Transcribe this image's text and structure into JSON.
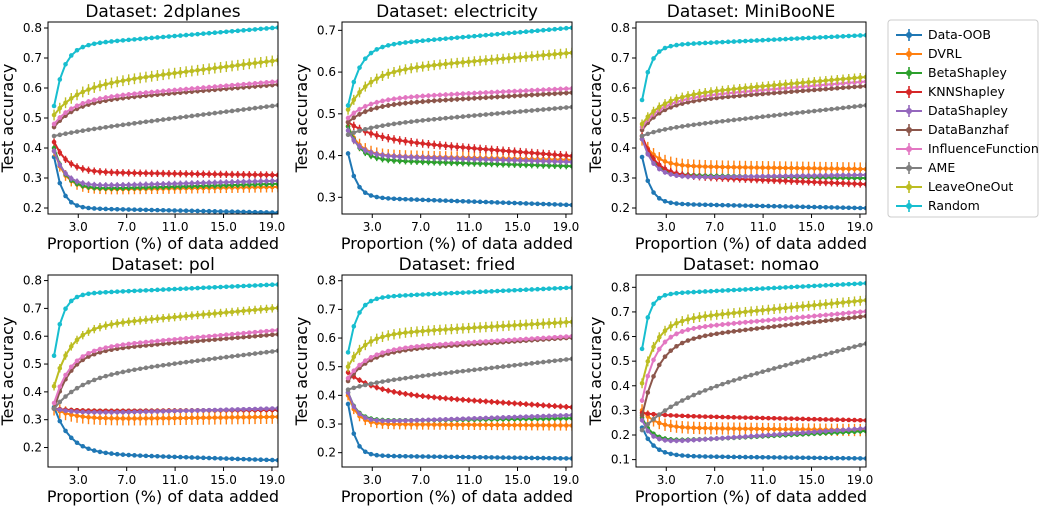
{
  "chart_data": {
    "type": "line",
    "grid": false,
    "legend_position": "right",
    "x_tick_labels": [
      "3.0",
      "7.0",
      "11.0",
      "15.0",
      "19.0"
    ],
    "xlabel": "Proportion (%) of data added",
    "ylabel": "Test accuracy",
    "series_styles": [
      {
        "name": "Data-OOB",
        "color": "#1f77b4"
      },
      {
        "name": "DVRL",
        "color": "#ff7f0e"
      },
      {
        "name": "BetaShapley",
        "color": "#2ca02c"
      },
      {
        "name": "KNNShapley",
        "color": "#d62728"
      },
      {
        "name": "DataShapley",
        "color": "#9467bd"
      },
      {
        "name": "DataBanzhaf",
        "color": "#8c564b"
      },
      {
        "name": "InfluenceFunction",
        "color": "#e377c2"
      },
      {
        "name": "AME",
        "color": "#7f7f7f"
      },
      {
        "name": "LeaveOneOut",
        "color": "#bcbd22"
      },
      {
        "name": "Random",
        "color": "#17becf"
      }
    ],
    "charts": [
      {
        "title": "Dataset: 2dplanes",
        "xlim": [
          0.5,
          19.5
        ],
        "ylim": [
          0.18,
          0.82
        ],
        "yticks": [
          0.2,
          0.3,
          0.4,
          0.5,
          0.6,
          0.7,
          0.8
        ],
        "series": [
          {
            "name": "Data-OOB",
            "start": 0.37,
            "mid": 0.2,
            "end": 0.185,
            "k": 0.5,
            "err": 0.005
          },
          {
            "name": "DVRL",
            "start": 0.39,
            "mid": 0.26,
            "end": 0.27,
            "k": 0.35,
            "err": 0.018
          },
          {
            "name": "BetaShapley",
            "start": 0.4,
            "mid": 0.26,
            "end": 0.28,
            "k": 0.35,
            "err": 0.01
          },
          {
            "name": "KNNShapley",
            "start": 0.42,
            "mid": 0.32,
            "end": 0.31,
            "k": 0.3,
            "err": 0.012
          },
          {
            "name": "DataShapley",
            "start": 0.39,
            "mid": 0.27,
            "end": 0.29,
            "k": 0.35,
            "err": 0.01
          },
          {
            "name": "DataBanzhaf",
            "start": 0.47,
            "mid": 0.55,
            "end": 0.61,
            "k": 0.2,
            "err": 0.008
          },
          {
            "name": "InfluenceFunction",
            "start": 0.48,
            "mid": 0.56,
            "end": 0.62,
            "k": 0.2,
            "err": 0.008
          },
          {
            "name": "AME",
            "start": 0.44,
            "mid": 0.45,
            "end": 0.54,
            "k": 0.12,
            "err": 0.006
          },
          {
            "name": "LeaveOneOut",
            "start": 0.51,
            "mid": 0.6,
            "end": 0.69,
            "k": 0.18,
            "err": 0.018
          },
          {
            "name": "Random",
            "start": 0.54,
            "mid": 0.74,
            "end": 0.8,
            "k": 0.4,
            "err": 0.006
          }
        ]
      },
      {
        "title": "Dataset: electricity",
        "xlim": [
          0.5,
          19.5
        ],
        "ylim": [
          0.26,
          0.72
        ],
        "yticks": [
          0.3,
          0.4,
          0.5,
          0.6,
          0.7
        ],
        "series": [
          {
            "name": "Data-OOB",
            "start": 0.405,
            "mid": 0.3,
            "end": 0.282,
            "k": 0.5,
            "err": 0.004
          },
          {
            "name": "DVRL",
            "start": 0.47,
            "mid": 0.4,
            "end": 0.39,
            "k": 0.35,
            "err": 0.015
          },
          {
            "name": "BetaShapley",
            "start": 0.47,
            "mid": 0.39,
            "end": 0.375,
            "k": 0.35,
            "err": 0.008
          },
          {
            "name": "KNNShapley",
            "start": 0.48,
            "mid": 0.44,
            "end": 0.4,
            "k": 0.15,
            "err": 0.01
          },
          {
            "name": "DataShapley",
            "start": 0.46,
            "mid": 0.4,
            "end": 0.385,
            "k": 0.35,
            "err": 0.008
          },
          {
            "name": "DataBanzhaf",
            "start": 0.48,
            "mid": 0.52,
            "end": 0.55,
            "k": 0.2,
            "err": 0.006
          },
          {
            "name": "InfluenceFunction",
            "start": 0.49,
            "mid": 0.535,
            "end": 0.56,
            "k": 0.2,
            "err": 0.006
          },
          {
            "name": "AME",
            "start": 0.45,
            "mid": 0.47,
            "end": 0.515,
            "k": 0.15,
            "err": 0.005
          },
          {
            "name": "LeaveOneOut",
            "start": 0.51,
            "mid": 0.6,
            "end": 0.645,
            "k": 0.2,
            "err": 0.012
          },
          {
            "name": "Random",
            "start": 0.52,
            "mid": 0.66,
            "end": 0.705,
            "k": 0.35,
            "err": 0.005
          }
        ]
      },
      {
        "title": "Dataset: MiniBooNE",
        "xlim": [
          0.5,
          19.5
        ],
        "ylim": [
          0.18,
          0.82
        ],
        "yticks": [
          0.2,
          0.3,
          0.4,
          0.5,
          0.6,
          0.7,
          0.8
        ],
        "series": [
          {
            "name": "Data-OOB",
            "start": 0.37,
            "mid": 0.215,
            "end": 0.2,
            "k": 0.5,
            "err": 0.004
          },
          {
            "name": "DVRL",
            "start": 0.43,
            "mid": 0.34,
            "end": 0.33,
            "k": 0.3,
            "err": 0.022
          },
          {
            "name": "BetaShapley",
            "start": 0.43,
            "mid": 0.31,
            "end": 0.3,
            "k": 0.35,
            "err": 0.008
          },
          {
            "name": "KNNShapley",
            "start": 0.44,
            "mid": 0.31,
            "end": 0.28,
            "k": 0.3,
            "err": 0.012
          },
          {
            "name": "DataShapley",
            "start": 0.43,
            "mid": 0.3,
            "end": 0.31,
            "k": 0.35,
            "err": 0.008
          },
          {
            "name": "DataBanzhaf",
            "start": 0.46,
            "mid": 0.55,
            "end": 0.605,
            "k": 0.2,
            "err": 0.006
          },
          {
            "name": "InfluenceFunction",
            "start": 0.47,
            "mid": 0.56,
            "end": 0.62,
            "k": 0.2,
            "err": 0.006
          },
          {
            "name": "AME",
            "start": 0.44,
            "mid": 0.46,
            "end": 0.54,
            "k": 0.2,
            "err": 0.005
          },
          {
            "name": "LeaveOneOut",
            "start": 0.48,
            "mid": 0.57,
            "end": 0.635,
            "k": 0.2,
            "err": 0.015
          },
          {
            "name": "Random",
            "start": 0.56,
            "mid": 0.74,
            "end": 0.775,
            "k": 0.5,
            "err": 0.006
          }
        ]
      },
      {
        "title": "Dataset: pol",
        "xlim": [
          0.5,
          19.5
        ],
        "ylim": [
          0.13,
          0.82
        ],
        "yticks": [
          0.2,
          0.3,
          0.4,
          0.5,
          0.6,
          0.7,
          0.8
        ],
        "series": [
          {
            "name": "Data-OOB",
            "start": 0.345,
            "mid": 0.18,
            "end": 0.155,
            "k": 0.25,
            "err": 0.004
          },
          {
            "name": "DVRL",
            "start": 0.34,
            "mid": 0.3,
            "end": 0.31,
            "k": 0.2,
            "err": 0.025
          },
          {
            "name": "BetaShapley",
            "start": 0.34,
            "mid": 0.33,
            "end": 0.335,
            "k": 0.2,
            "err": 0.006
          },
          {
            "name": "KNNShapley",
            "start": 0.34,
            "mid": 0.33,
            "end": 0.335,
            "k": 0.2,
            "err": 0.008
          },
          {
            "name": "DataShapley",
            "start": 0.34,
            "mid": 0.32,
            "end": 0.34,
            "k": 0.2,
            "err": 0.006
          },
          {
            "name": "DataBanzhaf",
            "start": 0.34,
            "mid": 0.54,
            "end": 0.605,
            "k": 0.25,
            "err": 0.006
          },
          {
            "name": "InfluenceFunction",
            "start": 0.36,
            "mid": 0.55,
            "end": 0.62,
            "k": 0.25,
            "err": 0.006
          },
          {
            "name": "AME",
            "start": 0.34,
            "mid": 0.45,
            "end": 0.545,
            "k": 0.15,
            "err": 0.005
          },
          {
            "name": "LeaveOneOut",
            "start": 0.42,
            "mid": 0.63,
            "end": 0.7,
            "k": 0.25,
            "err": 0.015
          },
          {
            "name": "Random",
            "start": 0.53,
            "mid": 0.75,
            "end": 0.785,
            "k": 0.5,
            "err": 0.006
          }
        ]
      },
      {
        "title": "Dataset: fried",
        "xlim": [
          0.5,
          19.5
        ],
        "ylim": [
          0.15,
          0.82
        ],
        "yticks": [
          0.2,
          0.3,
          0.4,
          0.5,
          0.6,
          0.7,
          0.8
        ],
        "series": [
          {
            "name": "Data-OOB",
            "start": 0.37,
            "mid": 0.19,
            "end": 0.18,
            "k": 0.6,
            "err": 0.004
          },
          {
            "name": "DVRL",
            "start": 0.4,
            "mid": 0.3,
            "end": 0.295,
            "k": 0.45,
            "err": 0.018
          },
          {
            "name": "BetaShapley",
            "start": 0.41,
            "mid": 0.31,
            "end": 0.32,
            "k": 0.45,
            "err": 0.008
          },
          {
            "name": "KNNShapley",
            "start": 0.48,
            "mid": 0.41,
            "end": 0.36,
            "k": 0.15,
            "err": 0.01
          },
          {
            "name": "DataShapley",
            "start": 0.41,
            "mid": 0.305,
            "end": 0.33,
            "k": 0.45,
            "err": 0.008
          },
          {
            "name": "DataBanzhaf",
            "start": 0.45,
            "mid": 0.55,
            "end": 0.6,
            "k": 0.2,
            "err": 0.006
          },
          {
            "name": "InfluenceFunction",
            "start": 0.46,
            "mid": 0.56,
            "end": 0.605,
            "k": 0.2,
            "err": 0.006
          },
          {
            "name": "AME",
            "start": 0.42,
            "mid": 0.44,
            "end": 0.525,
            "k": 0.15,
            "err": 0.005
          },
          {
            "name": "LeaveOneOut",
            "start": 0.5,
            "mid": 0.61,
            "end": 0.655,
            "k": 0.25,
            "err": 0.018
          },
          {
            "name": "Random",
            "start": 0.55,
            "mid": 0.74,
            "end": 0.775,
            "k": 0.45,
            "err": 0.006
          }
        ]
      },
      {
        "title": "Dataset: nomao",
        "xlim": [
          0.5,
          19.5
        ],
        "ylim": [
          0.07,
          0.85
        ],
        "yticks": [
          0.1,
          0.2,
          0.3,
          0.4,
          0.5,
          0.6,
          0.7,
          0.8
        ],
        "series": [
          {
            "name": "Data-OOB",
            "start": 0.23,
            "mid": 0.115,
            "end": 0.105,
            "k": 0.35,
            "err": 0.004
          },
          {
            "name": "DVRL",
            "start": 0.3,
            "mid": 0.23,
            "end": 0.22,
            "k": 0.3,
            "err": 0.025
          },
          {
            "name": "BetaShapley",
            "start": 0.27,
            "mid": 0.17,
            "end": 0.215,
            "k": 0.4,
            "err": 0.01
          },
          {
            "name": "KNNShapley",
            "start": 0.29,
            "mid": 0.28,
            "end": 0.26,
            "k": 0.2,
            "err": 0.008
          },
          {
            "name": "DataShapley",
            "start": 0.26,
            "mid": 0.165,
            "end": 0.225,
            "k": 0.45,
            "err": 0.01
          },
          {
            "name": "DataBanzhaf",
            "start": 0.28,
            "mid": 0.58,
            "end": 0.68,
            "k": 0.25,
            "err": 0.008
          },
          {
            "name": "InfluenceFunction",
            "start": 0.34,
            "mid": 0.62,
            "end": 0.7,
            "k": 0.3,
            "err": 0.01
          },
          {
            "name": "AME",
            "start": 0.22,
            "mid": 0.33,
            "end": 0.565,
            "k": 0.12,
            "err": 0.008
          },
          {
            "name": "LeaveOneOut",
            "start": 0.41,
            "mid": 0.66,
            "end": 0.745,
            "k": 0.3,
            "err": 0.02
          },
          {
            "name": "Random",
            "start": 0.55,
            "mid": 0.77,
            "end": 0.815,
            "k": 0.6,
            "err": 0.008
          }
        ]
      }
    ]
  }
}
